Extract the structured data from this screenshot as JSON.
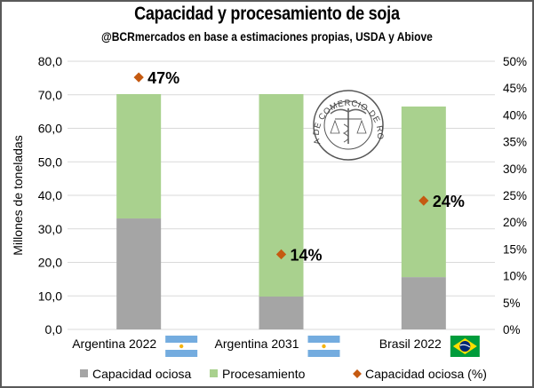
{
  "chart_data": {
    "type": "bar",
    "stacked": true,
    "title": "Capacidad y procesamiento de soja",
    "subtitle": "@BCRmercados en base a estimaciones propias, USDA y Abiove",
    "ylabel": "Millones de toneladas",
    "ylim": [
      0,
      80
    ],
    "y_ticks": [
      "0,0",
      "10,0",
      "20,0",
      "30,0",
      "40,0",
      "50,0",
      "60,0",
      "70,0",
      "80,0"
    ],
    "y2lim": [
      0,
      50
    ],
    "y2_ticks": [
      "0%",
      "5%",
      "10%",
      "15%",
      "20%",
      "25%",
      "30%",
      "35%",
      "40%",
      "45%",
      "50%"
    ],
    "grid": true,
    "categories": [
      "Argentina 2022",
      "Argentina 2031",
      "Brasil 2022"
    ],
    "category_flags": [
      "argentina-flag-icon",
      "argentina-flag-icon",
      "brazil-flag-icon"
    ],
    "series": [
      {
        "name": "Capacidad ociosa",
        "type": "bar",
        "axis": "left",
        "color": "#a5a5a5",
        "values": [
          33.1,
          9.8,
          15.6
        ]
      },
      {
        "name": "Procesamiento",
        "type": "bar",
        "axis": "left",
        "color": "#a9d18e",
        "values": [
          37.1,
          60.4,
          50.9
        ]
      },
      {
        "name": "Capacidad ociosa (%)",
        "type": "scatter",
        "axis": "right",
        "color": "#c55a11",
        "values": [
          47,
          14,
          24
        ],
        "labels": [
          "47%",
          "14%",
          "24%"
        ]
      }
    ],
    "legend": "bottom",
    "watermark": "BOLSA DE COMERCIO DE ROSARIO"
  }
}
